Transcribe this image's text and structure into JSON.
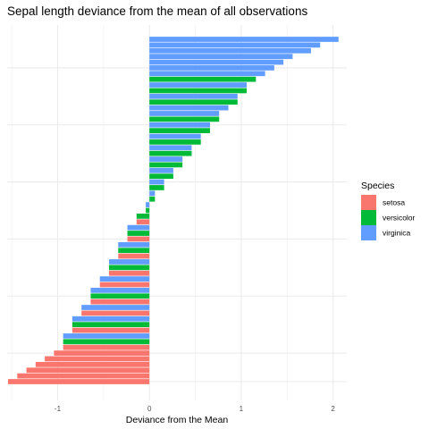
{
  "chart_data": {
    "type": "bar",
    "orientation": "horizontal",
    "title": "Sepal length deviance from the mean of all observations",
    "xlabel": "Deviance from the Mean",
    "ylabel": "",
    "xlim": [
      -1.55,
      2.15
    ],
    "xticks": [
      -1,
      0,
      1,
      2
    ],
    "x_tick_labels": [
      "-1",
      "0",
      "1",
      "2"
    ],
    "grid": true,
    "legend_position": "right",
    "legend": {
      "title": "Species",
      "entries": [
        {
          "name": "setosa",
          "color": "#F8766D"
        },
        {
          "name": "versicolor",
          "color": "#00BA38"
        },
        {
          "name": "virginica",
          "color": "#619CFF"
        }
      ]
    },
    "series": [
      {
        "name": "setosa",
        "color": "#F8766D",
        "values": [
          -1.54,
          -1.44,
          -1.34,
          -1.24,
          -1.14,
          -1.04,
          -0.94,
          -0.84,
          -0.74,
          -0.64,
          -0.54,
          -0.44,
          -0.34,
          -0.24,
          -0.14
        ]
      },
      {
        "name": "versicolor",
        "color": "#00BA38",
        "values": [
          1.16,
          1.06,
          0.96,
          0.76,
          0.66,
          0.56,
          0.46,
          0.36,
          0.26,
          0.16,
          0.06,
          -0.04,
          -0.14,
          -0.24,
          -0.34,
          -0.44,
          -0.64,
          -0.84,
          -0.94
        ]
      },
      {
        "name": "virginica",
        "color": "#619CFF",
        "values": [
          2.06,
          1.86,
          1.76,
          1.56,
          1.46,
          1.36,
          1.26,
          1.06,
          0.96,
          0.86,
          0.76,
          0.66,
          0.56,
          0.46,
          0.36,
          0.26,
          0.16,
          0.06,
          -0.04,
          -0.24,
          -0.34,
          -0.44,
          -0.54,
          -0.64,
          -0.74,
          -0.84,
          -0.94
        ]
      }
    ]
  }
}
